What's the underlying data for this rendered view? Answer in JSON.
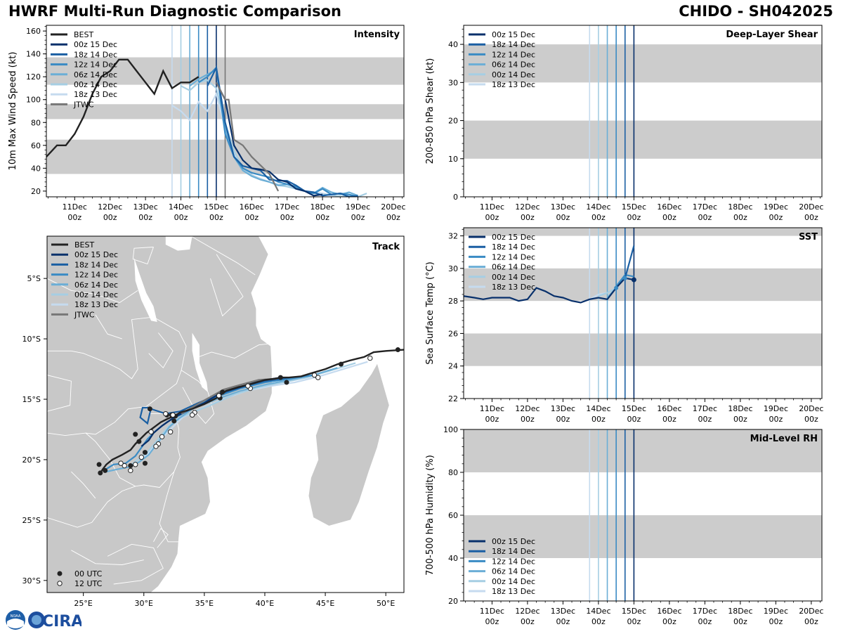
{
  "header": {
    "left_title": "HWRF Multi-Run Diagnostic Comparison",
    "right_title": "CHIDO - SH042025"
  },
  "logo": {
    "text": "CIRA",
    "badge": "NOAA"
  },
  "colors": {
    "best": "#222222",
    "jtwc": "#777777",
    "runs": [
      "#08306b",
      "#1a5fa3",
      "#3a8bc4",
      "#6baed6",
      "#a6cee3",
      "#c6dbef"
    ],
    "band": "#cccccc"
  },
  "time_axis": {
    "day_labels": [
      "11Dec",
      "12Dec",
      "13Dec",
      "14Dec",
      "15Dec",
      "16Dec",
      "17Dec",
      "18Dec",
      "19Dec",
      "20Dec"
    ],
    "hour_label": "00z",
    "first_day": 11,
    "range_days": [
      10.2,
      20.3
    ],
    "init_days": [
      13.75,
      14.0,
      14.25,
      14.5,
      14.75,
      15.0
    ],
    "jtwc_marker_day": 15.25
  },
  "legend": {
    "best": "BEST",
    "jtwc": "JTWC",
    "runs": [
      "00z 15 Dec",
      "18z 14 Dec",
      "12z 14 Dec",
      "06z 14 Dec",
      "00z 14 Dec",
      "18z 13 Dec"
    ],
    "utc00": "00 UTC",
    "utc12": "12 UTC"
  },
  "chart_data": [
    {
      "id": "intensity",
      "type": "line",
      "title": "Intensity",
      "ylabel": "10m Max Wind Speed (kt)",
      "ylim": [
        15,
        165
      ],
      "yticks": [
        20,
        40,
        60,
        80,
        100,
        120,
        140,
        160
      ],
      "bands": [
        [
          35,
          65
        ],
        [
          83,
          96
        ],
        [
          113,
          137
        ]
      ],
      "best": {
        "x": [
          10.2,
          10.5,
          10.75,
          11.0,
          11.25,
          11.5,
          11.75,
          12.0,
          12.25,
          12.5,
          12.75,
          13.0,
          13.25,
          13.5,
          13.75,
          14.0,
          14.25,
          14.5
        ],
        "y": [
          50,
          60,
          60,
          70,
          85,
          105,
          120,
          125,
          135,
          135,
          125,
          115,
          105,
          125,
          110,
          115,
          115,
          120
        ]
      },
      "jtwc": {
        "x": [
          15.0,
          15.25,
          15.35,
          15.5,
          15.75,
          16.0,
          16.5,
          16.75
        ],
        "y": [
          115,
          100,
          100,
          65,
          60,
          50,
          35,
          20
        ]
      },
      "runs": [
        {
          "x": [
            15.0,
            15.25,
            15.5,
            15.75,
            16.0,
            16.25,
            16.5,
            16.75,
            17.0,
            17.25,
            17.5,
            17.75,
            18.0
          ],
          "y": [
            115,
            100,
            60,
            47,
            40,
            39,
            37,
            30,
            28,
            22,
            20,
            16,
            17
          ]
        },
        {
          "x": [
            14.75,
            15.0,
            15.25,
            15.5,
            15.75,
            16.0,
            16.25,
            16.5,
            16.75,
            17.0,
            17.25,
            17.5,
            17.75,
            18.0,
            18.25,
            18.5,
            18.75,
            19.0
          ],
          "y": [
            112,
            128,
            80,
            50,
            42,
            40,
            38,
            30,
            29,
            29,
            25,
            20,
            19,
            16,
            17,
            18,
            15,
            16
          ]
        },
        {
          "x": [
            14.5,
            14.75,
            15.0,
            15.25,
            15.5,
            15.75,
            16.0,
            16.25,
            16.5,
            16.75,
            17.0,
            17.25,
            17.5,
            17.75,
            18.0,
            18.25,
            18.5,
            18.75,
            19.0
          ],
          "y": [
            115,
            120,
            128,
            70,
            50,
            40,
            36,
            34,
            32,
            28,
            26,
            24,
            20,
            18,
            22,
            17,
            18,
            17,
            15
          ]
        },
        {
          "x": [
            14.25,
            14.5,
            14.75,
            15.0,
            15.25,
            15.5,
            15.75,
            16.0,
            16.25,
            16.5,
            16.75,
            17.0,
            17.25,
            17.5,
            17.75,
            18.0,
            18.25,
            18.5,
            18.75,
            19.0
          ],
          "y": [
            112,
            118,
            122,
            126,
            75,
            50,
            38,
            33,
            30,
            28,
            25,
            26,
            23,
            20,
            18,
            23,
            19,
            17,
            19,
            16
          ]
        },
        {
          "x": [
            14.0,
            14.25,
            14.5,
            14.75,
            15.0,
            15.25,
            15.5,
            15.75,
            16.0,
            16.25,
            16.5,
            16.75,
            17.0,
            17.25,
            17.5,
            17.75,
            18.0,
            18.25,
            18.5,
            18.75,
            19.0,
            19.25
          ],
          "y": [
            112,
            108,
            115,
            117,
            110,
            80,
            55,
            40,
            34,
            30,
            28,
            25,
            24,
            22,
            20,
            18,
            17,
            17,
            15,
            16,
            15,
            18
          ]
        },
        {
          "x": [
            13.75,
            14.0,
            14.25,
            14.5,
            14.75,
            15.0,
            15.25,
            15.5,
            15.75,
            16.0,
            16.25,
            16.5,
            16.75,
            17.0,
            17.25,
            17.5,
            17.75,
            18.0,
            18.25,
            18.5
          ],
          "y": [
            95,
            90,
            82,
            98,
            90,
            105,
            75,
            52,
            38,
            34,
            31,
            28,
            26,
            24,
            22,
            20,
            19,
            18,
            16,
            15
          ]
        }
      ]
    },
    {
      "id": "shear",
      "type": "line",
      "title": "Deep-Layer Shear",
      "ylabel": "200-850 hPa Shear (kt)",
      "ylim": [
        0,
        45
      ],
      "yticks": [
        0,
        10,
        20,
        30,
        40
      ],
      "bands": [
        [
          10,
          20
        ],
        [
          30,
          40
        ]
      ],
      "runs": []
    },
    {
      "id": "sst",
      "type": "line",
      "title": "SST",
      "ylabel": "Sea Surface Temp (°C)",
      "ylim": [
        22,
        32.5
      ],
      "yticks": [
        22,
        24,
        26,
        28,
        30,
        32
      ],
      "bands": [
        [
          24,
          26
        ],
        [
          28,
          30
        ],
        [
          32,
          34
        ]
      ],
      "runs": [
        {
          "x": [
            10.2,
            10.5,
            10.75,
            11.0,
            11.25,
            11.5,
            11.75,
            12.0,
            12.25,
            12.5,
            12.75,
            13.0,
            13.25,
            13.5,
            13.75,
            14.0,
            14.25,
            14.5,
            14.75,
            15.0
          ],
          "y": [
            28.3,
            28.2,
            28.1,
            28.2,
            28.2,
            28.2,
            28.0,
            28.1,
            28.8,
            28.6,
            28.3,
            28.2,
            28.0,
            27.9,
            28.1,
            28.2,
            28.1,
            28.8,
            29.4,
            29.3
          ]
        },
        {
          "x": [
            14.75,
            15.0
          ],
          "y": [
            29.4,
            31.4
          ]
        },
        {
          "x": [
            14.5,
            14.75,
            15.0
          ],
          "y": [
            28.9,
            29.6,
            29.5
          ]
        },
        {
          "x": [
            14.25,
            14.5,
            14.75
          ],
          "y": [
            28.2,
            28.8,
            29.6
          ]
        },
        {
          "x": [
            14.0,
            14.25,
            14.5
          ],
          "y": [
            28.3,
            28.5,
            28.8
          ]
        },
        {
          "x": [
            13.75,
            14.0,
            14.25
          ],
          "y": [
            28.1,
            28.4,
            28.5
          ]
        }
      ]
    },
    {
      "id": "rh",
      "type": "line",
      "title": "Mid-Level RH",
      "ylabel": "700-500 hPa Humidity (%)",
      "ylim": [
        20,
        100
      ],
      "yticks": [
        20,
        40,
        60,
        80,
        100
      ],
      "bands": [
        [
          40,
          60
        ],
        [
          80,
          100
        ]
      ],
      "runs": []
    },
    {
      "id": "track",
      "type": "scatter",
      "title": "Track",
      "xlim": [
        22,
        51.5
      ],
      "ylim": [
        -31,
        -1.5
      ],
      "xticks": [
        25,
        30,
        35,
        40,
        45,
        50
      ],
      "xtick_labels": [
        "25°E",
        "30°E",
        "35°E",
        "40°E",
        "45°E",
        "50°E"
      ],
      "yticks": [
        -5,
        -10,
        -15,
        -20,
        -25,
        -30
      ],
      "ytick_labels": [
        "5°S",
        "10°S",
        "15°S",
        "20°S",
        "25°S",
        "30°S"
      ],
      "best": {
        "lon": [
          51.5,
          50.0,
          49.0,
          48.2,
          47.0,
          46.0,
          45.0,
          44.0,
          43.0,
          42.0,
          41.4,
          40.8,
          40.0,
          39.0,
          37.8,
          36.8,
          36.0,
          35.0,
          34.0,
          33.0,
          32.5,
          32.0,
          31.4,
          31.0,
          30.6,
          30.2,
          29.8,
          29.3,
          28.9,
          28.2,
          27.4,
          26.9,
          26.6,
          26.4
        ],
        "lat": [
          -10.9,
          -11.0,
          -11.1,
          -11.5,
          -11.8,
          -12.1,
          -12.5,
          -12.8,
          -13.1,
          -13.2,
          -13.2,
          -13.3,
          -13.4,
          -13.7,
          -14.0,
          -14.3,
          -14.9,
          -15.4,
          -15.8,
          -16.1,
          -16.4,
          -16.6,
          -16.9,
          -17.2,
          -17.5,
          -17.8,
          -18.2,
          -18.7,
          -19.2,
          -19.6,
          -20.0,
          -20.4,
          -20.8,
          -21.1
        ]
      },
      "best_00utc": [
        [
          51.0,
          -10.9
        ],
        [
          46.3,
          -12.1
        ],
        [
          41.8,
          -13.6
        ],
        [
          41.3,
          -13.2
        ],
        [
          36.5,
          -14.4
        ],
        [
          36.3,
          -14.9
        ],
        [
          32.6,
          -16.4
        ],
        [
          32.5,
          -16.8
        ],
        [
          32.3,
          -16.3
        ],
        [
          31.9,
          -16.3
        ],
        [
          30.5,
          -15.8
        ],
        [
          29.6,
          -18.5
        ],
        [
          29.3,
          -17.9
        ],
        [
          30.1,
          -19.4
        ],
        [
          30.1,
          -20.3
        ],
        [
          28.9,
          -20.5
        ],
        [
          26.8,
          -20.9
        ],
        [
          26.4,
          -21.1
        ],
        [
          26.3,
          -20.4
        ]
      ],
      "best_12utc": [
        [
          48.7,
          -11.6
        ],
        [
          44.4,
          -13.2
        ],
        [
          44.1,
          -13.0
        ],
        [
          38.8,
          -14.1
        ],
        [
          38.6,
          -13.9
        ],
        [
          36.2,
          -14.7
        ],
        [
          34.2,
          -16.1
        ],
        [
          34.0,
          -16.3
        ],
        [
          32.4,
          -16.3
        ],
        [
          31.8,
          -16.2
        ],
        [
          31.5,
          -18.1
        ],
        [
          31.2,
          -18.7
        ],
        [
          31.0,
          -18.9
        ],
        [
          30.6,
          -17.7
        ],
        [
          29.8,
          -19.8
        ],
        [
          29.3,
          -20.4
        ],
        [
          28.9,
          -20.9
        ],
        [
          28.4,
          -20.5
        ],
        [
          28.1,
          -20.3
        ],
        [
          32.2,
          -17.7
        ]
      ],
      "jtwc": {
        "lon": [
          41.0,
          39.5,
          38.0,
          36.6,
          34.8,
          33.1
        ],
        "lat": [
          -13.3,
          -13.4,
          -13.8,
          -14.2,
          -15.2,
          -16.2
        ]
      },
      "runs": [
        {
          "lon": [
            41.3,
            39.5,
            38.0,
            36.5,
            35.0,
            33.5,
            32.5,
            31.5,
            30.8,
            30.4,
            29.8
          ],
          "lat": [
            -13.2,
            -13.5,
            -14.0,
            -14.4,
            -15.3,
            -16.0,
            -16.5,
            -17.2,
            -17.8,
            -18.4,
            -18.9
          ]
        },
        {
          "lon": [
            42.0,
            40.0,
            38.0,
            36.2,
            34.5,
            33.0,
            31.8,
            30.9,
            30.3,
            29.9,
            29.7,
            30.3,
            30.6
          ],
          "lat": [
            -13.2,
            -13.5,
            -14.0,
            -14.6,
            -15.3,
            -16.0,
            -16.2,
            -15.9,
            -15.7,
            -15.7,
            -16.5,
            -17.0,
            -15.7
          ]
        },
        {
          "lon": [
            44.0,
            42.0,
            40.0,
            38.0,
            36.0,
            34.2,
            33.0,
            31.9,
            31.0,
            30.3,
            29.8,
            29.3,
            28.5,
            27.5,
            26.7
          ],
          "lat": [
            -13.0,
            -13.3,
            -13.6,
            -14.1,
            -14.8,
            -15.6,
            -16.3,
            -16.9,
            -17.6,
            -18.3,
            -19.0,
            -19.7,
            -20.3,
            -20.4,
            -20.9
          ]
        },
        {
          "lon": [
            46.0,
            44.0,
            42.0,
            40.0,
            38.0,
            36.0,
            34.0,
            32.9,
            32.1,
            31.6,
            31.0,
            30.4,
            29.6,
            28.8,
            27.8,
            26.9
          ],
          "lat": [
            -12.4,
            -13.0,
            -13.4,
            -13.8,
            -14.3,
            -15.0,
            -15.8,
            -16.6,
            -17.3,
            -18.0,
            -18.8,
            -19.6,
            -20.2,
            -20.6,
            -20.8,
            -21.0
          ]
        },
        {
          "lon": [
            47.5,
            45.5,
            43.5,
            41.5,
            39.5,
            37.5,
            35.5,
            34.0,
            32.8,
            32.0,
            31.2,
            30.2,
            29.0
          ],
          "lat": [
            -12.0,
            -12.6,
            -13.2,
            -13.6,
            -14.0,
            -14.6,
            -15.5,
            -16.1,
            -16.6,
            -17.3,
            -18.3,
            -19.5,
            -20.4
          ]
        },
        {
          "lon": [
            48.5,
            46.5,
            44.5,
            42.5,
            40.5,
            38.5,
            36.5,
            34.5,
            33.2,
            32.4,
            31.7,
            31.0,
            30.0
          ],
          "lat": [
            -11.9,
            -12.5,
            -13.1,
            -13.6,
            -13.9,
            -14.3,
            -15.0,
            -15.9,
            -16.5,
            -17.3,
            -18.0,
            -18.8,
            -19.8
          ]
        }
      ]
    }
  ]
}
